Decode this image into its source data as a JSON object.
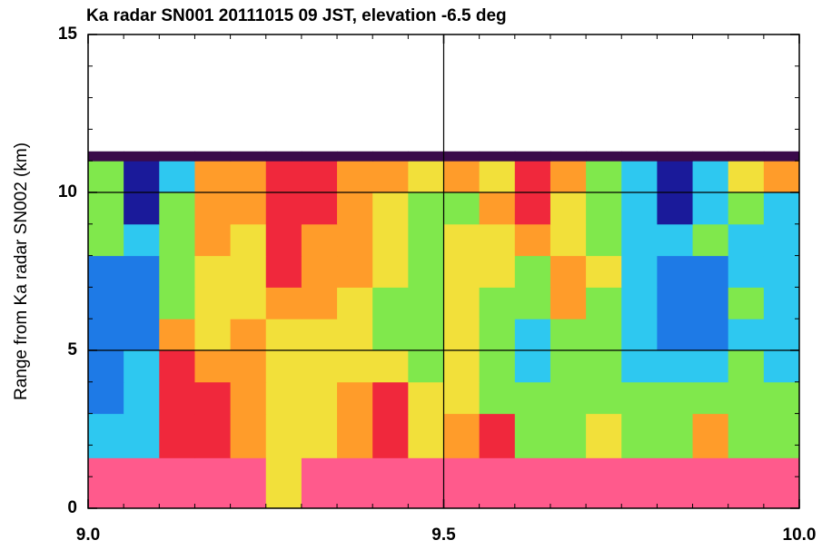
{
  "chart_data": {
    "type": "heatmap",
    "title": "Ka radar SN001 20111015 09 JST, elevation -6.5 deg",
    "y_label": "Range from Ka radar SN002 (km)",
    "xlim": [
      9.0,
      10.0
    ],
    "ylim": [
      0,
      15
    ],
    "xticks": [
      {
        "value": 9.0,
        "label": "9.0"
      },
      9.5,
      {
        "value": 10.0,
        "label": "10.0"
      }
    ],
    "yticks": [
      0,
      5,
      10,
      15
    ],
    "grid": true,
    "xbins": [
      9.0,
      9.05,
      9.1,
      9.15,
      9.2,
      9.25,
      9.3,
      9.35,
      9.4,
      9.45,
      9.5,
      9.55,
      9.6,
      9.65,
      9.7,
      9.75,
      9.8,
      9.85,
      9.9,
      9.95,
      10.0
    ],
    "ybins": [
      0,
      1.6,
      3,
      4,
      5,
      6,
      7,
      8,
      9,
      10,
      11,
      11.3
    ],
    "colors": [
      "#3a0a4a",
      "#1a1a9a",
      "#1e7ae6",
      "#2ec8f0",
      "#80e84c",
      "#f2e03a",
      "#ff9c2a",
      "#f0283c",
      "#ff5a8c"
    ],
    "values": [
      [
        8,
        8,
        8,
        8,
        8,
        5,
        8,
        8,
        8,
        8,
        8,
        8,
        8,
        8,
        8,
        8,
        8,
        8,
        8,
        8
      ],
      [
        3,
        3,
        7,
        7,
        6,
        5,
        5,
        6,
        7,
        5,
        6,
        7,
        4,
        4,
        5,
        4,
        4,
        6,
        4,
        4
      ],
      [
        2,
        3,
        7,
        7,
        6,
        5,
        5,
        6,
        7,
        5,
        5,
        4,
        4,
        4,
        4,
        4,
        4,
        4,
        4,
        4
      ],
      [
        2,
        3,
        7,
        6,
        6,
        5,
        5,
        5,
        5,
        4,
        5,
        4,
        3,
        4,
        4,
        3,
        3,
        3,
        4,
        3
      ],
      [
        2,
        2,
        6,
        5,
        6,
        5,
        5,
        5,
        4,
        4,
        5,
        4,
        3,
        4,
        4,
        3,
        2,
        2,
        3,
        3
      ],
      [
        2,
        2,
        4,
        5,
        5,
        6,
        6,
        5,
        4,
        4,
        5,
        4,
        4,
        6,
        4,
        3,
        2,
        2,
        4,
        3
      ],
      [
        2,
        2,
        4,
        5,
        5,
        7,
        6,
        6,
        5,
        4,
        5,
        5,
        4,
        6,
        5,
        3,
        2,
        2,
        3,
        3
      ],
      [
        4,
        3,
        4,
        6,
        5,
        7,
        6,
        6,
        5,
        4,
        5,
        5,
        6,
        5,
        4,
        3,
        3,
        4,
        3,
        3
      ],
      [
        4,
        1,
        4,
        6,
        6,
        7,
        7,
        6,
        5,
        4,
        4,
        6,
        7,
        5,
        4,
        3,
        1,
        3,
        4,
        3
      ],
      [
        4,
        1,
        3,
        6,
        6,
        7,
        7,
        6,
        6,
        5,
        6,
        5,
        7,
        6,
        4,
        3,
        1,
        3,
        5,
        6
      ],
      [
        0,
        0,
        0,
        0,
        0,
        0,
        0,
        0,
        0,
        0,
        0,
        0,
        0,
        0,
        0,
        0,
        0,
        0,
        0,
        0
      ]
    ]
  }
}
